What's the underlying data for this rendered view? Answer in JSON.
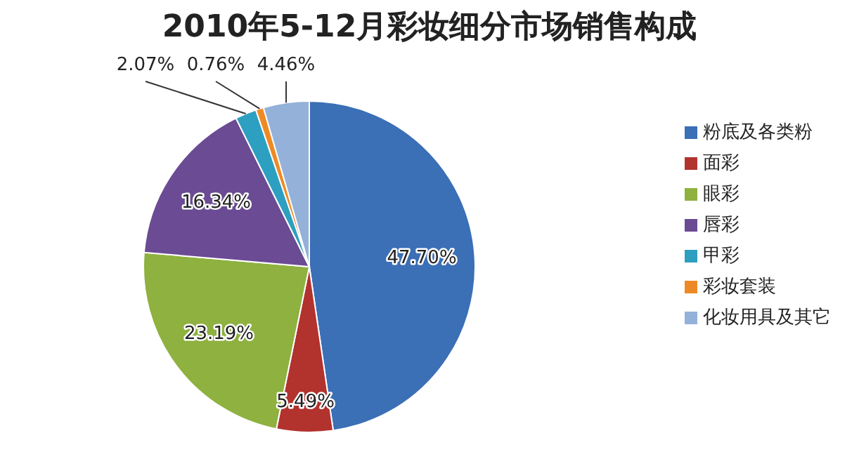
{
  "chart_data": {
    "type": "pie",
    "title": "2010年5-12月彩妆细分市场销售构成",
    "categories": [
      "粉底及各类粉",
      "面彩",
      "眼彩",
      "唇彩",
      "甲彩",
      "彩妆套装",
      "化妆用具及其它"
    ],
    "values": [
      47.7,
      5.49,
      23.19,
      16.34,
      2.07,
      0.76,
      4.46
    ],
    "value_labels": [
      "47.70%",
      "5.49%",
      "23.19%",
      "16.34%",
      "2.07%",
      "0.76%",
      "4.46%"
    ],
    "colors": [
      "#3b6fb6",
      "#b2322e",
      "#8eb13f",
      "#6b4b93",
      "#2d9fc0",
      "#ee8a25",
      "#93b1d9"
    ],
    "legend": "right"
  }
}
